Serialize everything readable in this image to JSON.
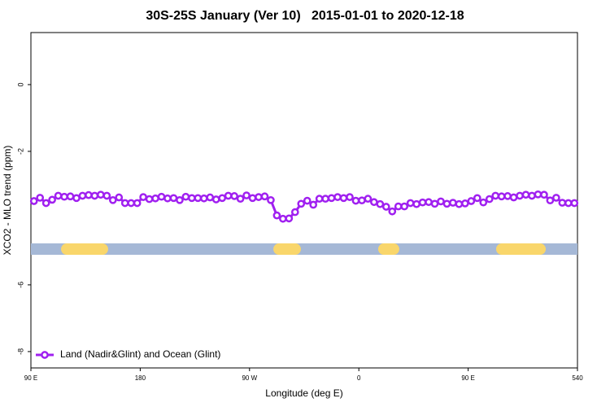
{
  "chart_data": {
    "type": "line",
    "title": "30S-25S January (Ver 10)   2015-01-01 to 2020-12-18",
    "x_label": "Longitude (deg E)",
    "y_label": "XCO2 - MLO trend (ppm)",
    "xlim": [
      90,
      540
    ],
    "xticks": [
      {
        "value": 90,
        "label": "90 E"
      },
      180,
      {
        "value": 270,
        "label": "90 W"
      },
      {
        "value": 360,
        "label": "0"
      },
      {
        "value": 450,
        "label": "90 E"
      },
      540
    ],
    "ylim": [
      -8.49,
      1.56
    ],
    "yticks": [
      -8,
      -6,
      -2,
      0
    ],
    "legend_position": "bottom-left",
    "x": [
      92.5,
      97.5,
      102.5,
      107.5,
      112.5,
      117.5,
      122.5,
      127.5,
      132.5,
      137.5,
      142.5,
      147.5,
      152.5,
      157.5,
      162.5,
      167.5,
      172.5,
      177.5,
      182.5,
      187.5,
      192.5,
      197.5,
      202.5,
      207.5,
      212.5,
      217.5,
      222.5,
      227.5,
      232.5,
      237.5,
      242.5,
      247.5,
      252.5,
      257.5,
      262.5,
      267.5,
      272.5,
      277.5,
      282.5,
      287.5,
      292.5,
      297.5,
      302.5,
      307.5,
      312.5,
      317.5,
      322.5,
      327.5,
      332.5,
      337.5,
      342.5,
      347.5,
      352.5,
      357.5,
      362.5,
      367.5,
      372.5,
      377.5,
      382.5,
      387.5,
      392.5,
      397.5,
      402.5,
      407.5,
      412.5,
      417.5,
      422.5,
      427.5,
      432.5,
      437.5,
      442.5,
      447.5,
      452.5,
      457.5,
      462.5,
      467.5,
      472.5,
      477.5,
      482.5,
      487.5,
      492.5,
      497.5,
      502.5,
      507.5,
      512.5,
      517.5,
      522.5,
      527.5,
      532.5,
      537.5
    ],
    "series": [
      {
        "name": "Land (Nadir&Glint) and Ocean (Glint)",
        "color": "#a020f0",
        "values": [
          -3.49,
          -3.39,
          -3.55,
          -3.45,
          -3.33,
          -3.36,
          -3.35,
          -3.4,
          -3.33,
          -3.31,
          -3.33,
          -3.3,
          -3.33,
          -3.46,
          -3.38,
          -3.55,
          -3.55,
          -3.55,
          -3.37,
          -3.43,
          -3.41,
          -3.36,
          -3.41,
          -3.4,
          -3.46,
          -3.36,
          -3.4,
          -3.4,
          -3.41,
          -3.38,
          -3.44,
          -3.4,
          -3.33,
          -3.34,
          -3.42,
          -3.32,
          -3.4,
          -3.37,
          -3.35,
          -3.46,
          -3.92,
          -4.02,
          -4.01,
          -3.82,
          -3.57,
          -3.48,
          -3.6,
          -3.42,
          -3.42,
          -3.4,
          -3.37,
          -3.4,
          -3.37,
          -3.48,
          -3.47,
          -3.42,
          -3.52,
          -3.58,
          -3.66,
          -3.8,
          -3.65,
          -3.65,
          -3.55,
          -3.58,
          -3.53,
          -3.52,
          -3.57,
          -3.5,
          -3.57,
          -3.54,
          -3.58,
          -3.56,
          -3.49,
          -3.4,
          -3.53,
          -3.43,
          -3.33,
          -3.35,
          -3.34,
          -3.38,
          -3.33,
          -3.3,
          -3.33,
          -3.29,
          -3.3,
          -3.47,
          -3.39,
          -3.54,
          -3.55,
          -3.55
        ]
      }
    ],
    "surface_bar": {
      "y": -4.93,
      "ocean_color": "#a5b8d6",
      "land_color": "#f9d66b",
      "land_ranges": [
        [
          114.8,
          153.6
        ],
        [
          289.6,
          312.3
        ],
        [
          375.9,
          393.3
        ],
        [
          473.0,
          513.9
        ]
      ]
    }
  }
}
